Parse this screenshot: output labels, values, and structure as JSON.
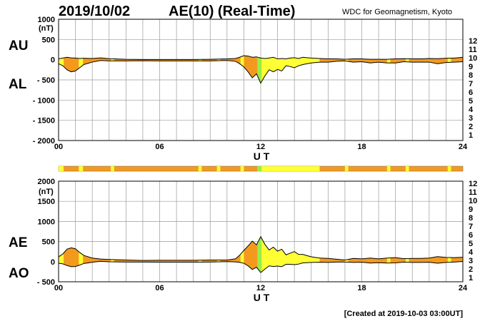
{
  "header": {
    "date": "2019/10/02",
    "title": "AE(10) (Real-Time)",
    "source": "WDC for Geomagnetism, Kyoto"
  },
  "footer": {
    "created": "[Created at 2019-10-03 03:00UT]"
  },
  "colors": {
    "fill_orange": "#f39a1e",
    "fill_yellow": "#ffff33",
    "fill_green": "#99ee44",
    "grid": "#9a9a9a",
    "bar_base": "#f39a1e"
  },
  "legend": {
    "items": [
      {
        "label": "12",
        "color": "#ff2a7f"
      },
      {
        "label": "11",
        "color": "#ee1111"
      },
      {
        "label": "10",
        "color": "#ff9900"
      },
      {
        "label": "9",
        "color": "#ffee00"
      },
      {
        "label": "8",
        "color": "#aaff33"
      },
      {
        "label": "7",
        "color": "#33ddff"
      },
      {
        "label": "6",
        "color": "#0066ff"
      },
      {
        "label": "5",
        "color": "#2200cc"
      },
      {
        "label": "4",
        "color": "#dd00dd"
      },
      {
        "label": "3",
        "color": "#000000"
      },
      {
        "label": "2",
        "color": "#666666"
      },
      {
        "label": "1",
        "color": "#bbbbbb"
      }
    ]
  },
  "station_bar": {
    "segments": [
      {
        "start": 0.0,
        "end": 0.3,
        "color": "#ffff33"
      },
      {
        "start": 1.2,
        "end": 1.45,
        "color": "#ffff33"
      },
      {
        "start": 3.1,
        "end": 3.3,
        "color": "#ffff33"
      },
      {
        "start": 8.3,
        "end": 8.5,
        "color": "#ffff33"
      },
      {
        "start": 9.4,
        "end": 9.6,
        "color": "#ffff33"
      },
      {
        "start": 10.8,
        "end": 11.0,
        "color": "#ffff33"
      },
      {
        "start": 11.8,
        "end": 12.05,
        "color": "#99ee44"
      },
      {
        "start": 12.05,
        "end": 15.5,
        "color": "#ffff33"
      },
      {
        "start": 17.0,
        "end": 17.2,
        "color": "#ffff33"
      },
      {
        "start": 19.5,
        "end": 19.7,
        "color": "#ffff33"
      },
      {
        "start": 20.6,
        "end": 20.8,
        "color": "#ffff33"
      },
      {
        "start": 23.1,
        "end": 23.3,
        "color": "#ffff33"
      }
    ]
  },
  "chart_data": [
    {
      "type": "area",
      "label_upper": "AU",
      "label_lower": "AL",
      "unit": "(nT)",
      "xlabel": "U T",
      "xlim": [
        0,
        24
      ],
      "ylim": [
        -2000,
        1000
      ],
      "yticks": [
        "1000",
        "500",
        "0",
        "- 500",
        "- 1000",
        "- 1500",
        "- 2000"
      ],
      "xticks": [
        "00",
        "06",
        "12",
        "18",
        "24"
      ],
      "grid": true,
      "x": [
        0,
        0.25,
        0.5,
        0.75,
        1.0,
        1.25,
        1.5,
        2,
        2.5,
        3,
        4,
        5,
        6,
        7,
        8,
        9,
        10,
        10.5,
        10.75,
        11,
        11.25,
        11.5,
        11.75,
        12,
        12.25,
        12.5,
        12.75,
        13,
        13.25,
        13.5,
        13.75,
        14,
        14.25,
        14.5,
        14.75,
        15,
        15.5,
        16,
        16.5,
        17,
        17.5,
        18,
        18.5,
        19,
        19.5,
        20,
        20.5,
        21,
        21.5,
        22,
        22.5,
        23,
        23.5,
        24
      ],
      "series": [
        {
          "values": [
            20,
            40,
            60,
            45,
            40,
            30,
            35,
            30,
            45,
            25,
            10,
            5,
            5,
            5,
            5,
            10,
            20,
            30,
            60,
            100,
            90,
            60,
            70,
            40,
            30,
            40,
            60,
            20,
            30,
            20,
            40,
            50,
            30,
            60,
            50,
            40,
            30,
            20,
            20,
            10,
            20,
            20,
            10,
            10,
            10,
            20,
            25,
            20,
            20,
            30,
            25,
            35,
            40,
            60
          ]
        },
        {
          "values": [
            -100,
            -150,
            -250,
            -300,
            -280,
            -200,
            -120,
            -60,
            -20,
            -30,
            -30,
            -25,
            -30,
            -30,
            -30,
            -30,
            -20,
            -40,
            -100,
            -180,
            -300,
            -450,
            -350,
            -580,
            -400,
            -250,
            -300,
            -240,
            -280,
            -150,
            -170,
            -200,
            -150,
            -120,
            -100,
            -80,
            -60,
            -60,
            -40,
            -30,
            -60,
            -50,
            -80,
            -60,
            -80,
            -80,
            -50,
            -60,
            -60,
            -60,
            -100,
            -70,
            -60,
            -50
          ]
        }
      ]
    },
    {
      "type": "area",
      "label_upper": "AE",
      "label_lower": "AO",
      "unit": "(nT)",
      "xlabel": "U T",
      "xlim": [
        0,
        24
      ],
      "ylim": [
        -500,
        2000
      ],
      "yticks": [
        "2000",
        "1500",
        "1000",
        "500",
        "0",
        "- 500"
      ],
      "xticks": [
        "00",
        "06",
        "12",
        "18",
        "24"
      ],
      "grid": true,
      "x": [
        0,
        0.25,
        0.5,
        0.75,
        1.0,
        1.25,
        1.5,
        2,
        2.5,
        3,
        4,
        5,
        6,
        7,
        8,
        9,
        10,
        10.5,
        10.75,
        11,
        11.25,
        11.5,
        11.75,
        12,
        12.25,
        12.5,
        12.75,
        13,
        13.25,
        13.5,
        13.75,
        14,
        14.25,
        14.5,
        14.75,
        15,
        15.5,
        16,
        16.5,
        17,
        17.5,
        18,
        18.5,
        19,
        19.5,
        20,
        20.5,
        21,
        21.5,
        22,
        22.5,
        23,
        23.5,
        24
      ],
      "series": [
        {
          "values": [
            120,
            190,
            310,
            345,
            320,
            230,
            155,
            90,
            65,
            55,
            40,
            30,
            35,
            35,
            35,
            40,
            40,
            70,
            160,
            280,
            390,
            510,
            420,
            620,
            430,
            290,
            360,
            260,
            310,
            170,
            210,
            250,
            180,
            180,
            150,
            120,
            90,
            80,
            60,
            40,
            80,
            70,
            90,
            70,
            90,
            100,
            75,
            80,
            80,
            90,
            125,
            105,
            100,
            110
          ]
        },
        {
          "values": [
            -40,
            -55,
            -95,
            -125,
            -120,
            -85,
            -45,
            -15,
            10,
            -3,
            -10,
            -10,
            -13,
            -13,
            -13,
            -10,
            0,
            -5,
            -20,
            -40,
            -105,
            -195,
            -140,
            -270,
            -185,
            -105,
            -120,
            -110,
            -125,
            -65,
            -65,
            -75,
            -60,
            -30,
            -25,
            -20,
            -15,
            -20,
            -10,
            -10,
            -20,
            -15,
            -35,
            -25,
            -35,
            -30,
            -13,
            -20,
            -20,
            -15,
            -38,
            -18,
            -10,
            5
          ]
        }
      ]
    }
  ]
}
